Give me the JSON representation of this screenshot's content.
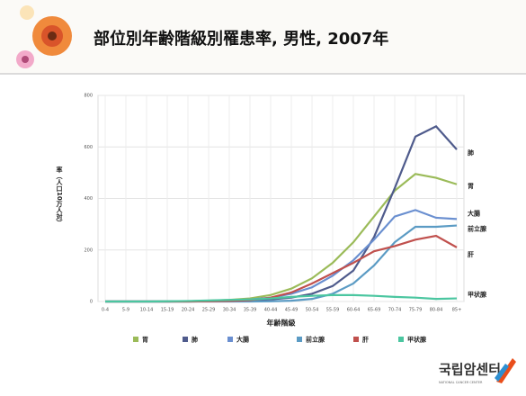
{
  "header": {
    "title": "部位別年齢階級別罹患率, 男性, 2007年"
  },
  "chart_data": {
    "type": "line",
    "x_label": "年齢階級",
    "y_label": "率（人口10万人対）",
    "categories": [
      "0-4",
      "5-9",
      "10-14",
      "15-19",
      "20-24",
      "25-29",
      "30-34",
      "35-39",
      "40-44",
      "45-49",
      "50-54",
      "55-59",
      "60-64",
      "65-69",
      "70-74",
      "75-79",
      "80-84",
      "85+"
    ],
    "ylim": [
      0,
      800
    ],
    "yticks": [
      0,
      200,
      400,
      600,
      800
    ],
    "grid": true,
    "series": [
      {
        "name": "胃",
        "color": "#9bbb59",
        "values": [
          0,
          0,
          0,
          0,
          1,
          3,
          6,
          12,
          25,
          50,
          90,
          150,
          230,
          330,
          430,
          495,
          480,
          455
        ]
      },
      {
        "name": "肺",
        "color": "#4f5b8c",
        "values": [
          0,
          0,
          0,
          0,
          0,
          1,
          2,
          4,
          8,
          15,
          30,
          60,
          120,
          250,
          440,
          640,
          680,
          590
        ]
      },
      {
        "name": "大腸",
        "color": "#6a8fd0",
        "values": [
          0,
          0,
          0,
          0,
          1,
          2,
          4,
          8,
          15,
          30,
          55,
          100,
          160,
          240,
          330,
          355,
          325,
          320
        ]
      },
      {
        "name": "前立腺",
        "color": "#5b9bc4",
        "values": [
          0,
          0,
          0,
          0,
          0,
          0,
          0,
          0,
          1,
          3,
          10,
          30,
          70,
          140,
          230,
          290,
          290,
          295
        ]
      },
      {
        "name": "肝",
        "color": "#c0504d",
        "values": [
          0,
          0,
          0,
          0,
          0,
          1,
          2,
          5,
          15,
          35,
          70,
          110,
          150,
          195,
          215,
          240,
          255,
          210
        ]
      },
      {
        "name": "甲状腺",
        "color": "#4bc6a0",
        "values": [
          0,
          0,
          0,
          1,
          2,
          4,
          6,
          8,
          12,
          18,
          22,
          25,
          25,
          22,
          18,
          15,
          10,
          12
        ]
      }
    ]
  },
  "logo": {
    "name": "국립암센터",
    "subtitle": "NATIONAL CANCER CENTER"
  }
}
